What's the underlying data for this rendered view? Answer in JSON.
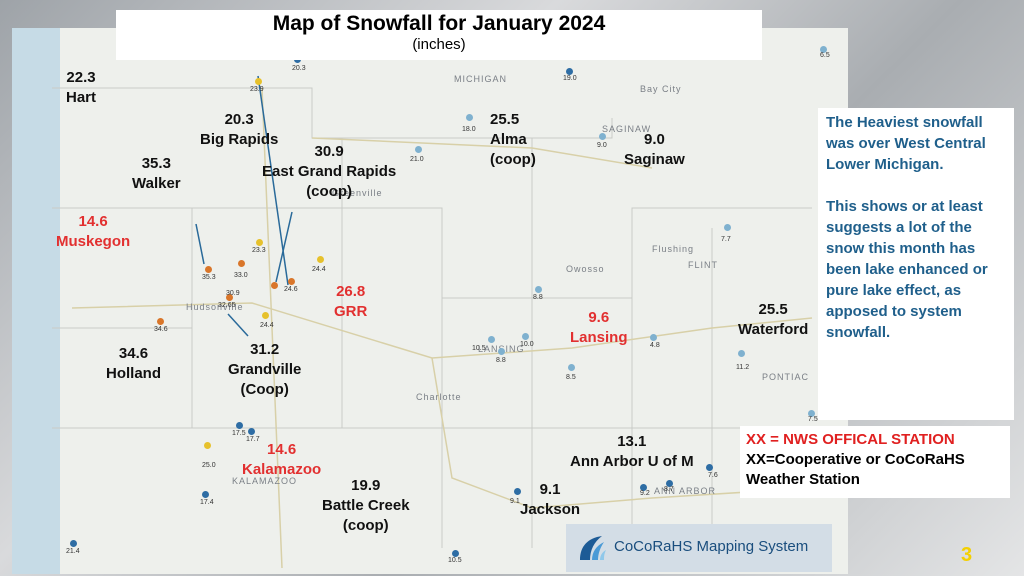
{
  "title": "Map of Snowfall for January 2024",
  "subtitle": "(inches)",
  "callout": {
    "line1": "The Heaviest snowfall was over West Central Lower Michigan.",
    "line2": "This shows or at least suggests a lot of the snow this month has been lake enhanced or pure lake effect, as apposed to system snowfall."
  },
  "legend": {
    "official": "XX = NWS OFFICAL STATION",
    "coop": "XX=Cooperative or CoCoRaHS Weather Station"
  },
  "stations": [
    {
      "value": "22.3",
      "name": "Hart",
      "name2": "",
      "official": false
    },
    {
      "value": "20.3",
      "name": "Big Rapids",
      "name2": "",
      "official": false
    },
    {
      "value": "25.5",
      "name": "Alma",
      "name2": "(coop)",
      "official": false
    },
    {
      "value": "9.0",
      "name": "Saginaw",
      "name2": "",
      "official": false
    },
    {
      "value": "35.3",
      "name": "Walker",
      "name2": "",
      "official": false
    },
    {
      "value": "30.9",
      "name": "East Grand Rapids",
      "name2": "(coop)",
      "official": false
    },
    {
      "value": "14.6",
      "name": "Muskegon",
      "name2": "",
      "official": true
    },
    {
      "value": "26.8",
      "name": "GRR",
      "name2": "",
      "official": true
    },
    {
      "value": "9.6",
      "name": "Lansing",
      "name2": "",
      "official": true
    },
    {
      "value": "25.5",
      "name": "Waterford",
      "name2": "",
      "official": false
    },
    {
      "value": "34.6",
      "name": "Holland",
      "name2": "",
      "official": false
    },
    {
      "value": "31.2",
      "name": "Grandville",
      "name2": "(Coop)",
      "official": false
    },
    {
      "value": "13.1",
      "name": "Ann Arbor U of M",
      "name2": "",
      "official": false
    },
    {
      "value": "14.6",
      "name": "Kalamazoo",
      "name2": "",
      "official": true
    },
    {
      "value": "19.9",
      "name": "Battle Creek",
      "name2": "(coop)",
      "official": false
    },
    {
      "value": "9.1",
      "name": "Jackson",
      "name2": "",
      "official": false
    }
  ],
  "map_values": [
    "20.3",
    "6.5",
    "23.9",
    "19.0",
    "18.0",
    "9.0",
    "21.0",
    "7.7",
    "23.3",
    "24.4",
    "35.3",
    "33.0",
    "32.65",
    "30.9",
    "24.6",
    "34.6",
    "24.4",
    "8.8",
    "10.5",
    "8.8",
    "10.0",
    "4.8",
    "8.5",
    "11.2",
    "17.5",
    "17.7",
    "25.0",
    "17.4",
    "9.1",
    "9.2",
    "8.7",
    "7.6",
    "21.4",
    "10.5",
    "7.5"
  ],
  "map_names": [
    "MICHIGAN",
    "Bay City",
    "SAGINAW",
    "FLINT",
    "LANSING",
    "PONTIAC",
    "ANN ARBOR",
    "KALAMAZOO",
    "Greenville",
    "Owosso",
    "Charlotte",
    "Flushing",
    "Hudsonville"
  ],
  "footer": {
    "logo_text": "CoCoRaHS",
    "system": "CoCoRaHS Mapping System",
    "slide_number": "3"
  }
}
